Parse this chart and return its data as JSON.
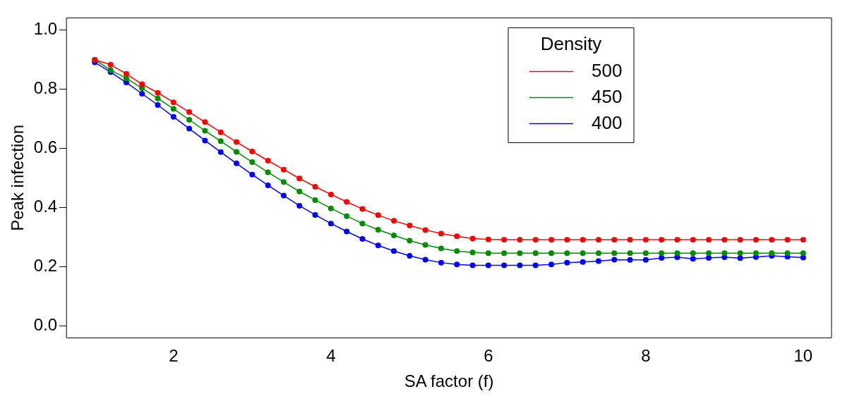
{
  "chart_data": {
    "type": "line",
    "xlabel": "SA factor (f)",
    "ylabel": "Peak infection",
    "legend_title": "Density",
    "legend": "top right",
    "marker": "circle",
    "line_style": "solid",
    "grid": false,
    "x": [
      1,
      1.2,
      1.4,
      1.6,
      1.8,
      2,
      2.2,
      2.4,
      2.6,
      2.8,
      3,
      3.2,
      3.4,
      3.6,
      3.8,
      4,
      4.2,
      4.4,
      4.6,
      4.8,
      5,
      5.2,
      5.4,
      5.6,
      5.8,
      6,
      6.2,
      6.4,
      6.6,
      6.8,
      7,
      7.2,
      7.4,
      7.6,
      7.8,
      8,
      8.2,
      8.4,
      8.6,
      8.8,
      9,
      9.2,
      9.4,
      9.6,
      9.8,
      10
    ],
    "xlim": [
      0.64,
      10.36
    ],
    "xticks": [
      2,
      4,
      6,
      8,
      10
    ],
    "ylim": [
      -0.04,
      1.04
    ],
    "yticks": [
      {
        "value": 0,
        "label": "0.0"
      },
      0.2,
      0.4,
      0.6,
      0.8,
      {
        "value": 1,
        "label": "1.0"
      }
    ],
    "series": [
      {
        "name": "500",
        "color": "#ff0000",
        "values": [
          0.898,
          0.882,
          0.851,
          0.816,
          0.787,
          0.755,
          0.722,
          0.688,
          0.654,
          0.621,
          0.589,
          0.558,
          0.528,
          0.498,
          0.47,
          0.444,
          0.419,
          0.395,
          0.374,
          0.355,
          0.339,
          0.324,
          0.312,
          0.303,
          0.295,
          0.292,
          0.291,
          0.291,
          0.291,
          0.291,
          0.291,
          0.291,
          0.291,
          0.291,
          0.291,
          0.291,
          0.291,
          0.291,
          0.291,
          0.291,
          0.291,
          0.291,
          0.291,
          0.291,
          0.291,
          0.291
        ]
      },
      {
        "name": "450",
        "color": "#008b00",
        "values": [
          0.899,
          0.864,
          0.836,
          0.803,
          0.768,
          0.733,
          0.696,
          0.659,
          0.624,
          0.588,
          0.553,
          0.519,
          0.486,
          0.454,
          0.425,
          0.397,
          0.371,
          0.346,
          0.325,
          0.306,
          0.288,
          0.274,
          0.262,
          0.253,
          0.248,
          0.246,
          0.246,
          0.246,
          0.246,
          0.246,
          0.246,
          0.246,
          0.246,
          0.246,
          0.246,
          0.246,
          0.246,
          0.246,
          0.246,
          0.246,
          0.246,
          0.246,
          0.246,
          0.246,
          0.246,
          0.246
        ]
      },
      {
        "name": "400",
        "color": "#0000ff",
        "values": [
          0.89,
          0.857,
          0.822,
          0.784,
          0.746,
          0.706,
          0.666,
          0.626,
          0.587,
          0.549,
          0.511,
          0.475,
          0.44,
          0.406,
          0.375,
          0.346,
          0.319,
          0.294,
          0.272,
          0.253,
          0.237,
          0.224,
          0.214,
          0.208,
          0.205,
          0.205,
          0.205,
          0.205,
          0.205,
          0.208,
          0.214,
          0.216,
          0.219,
          0.224,
          0.223,
          0.223,
          0.23,
          0.232,
          0.227,
          0.23,
          0.232,
          0.229,
          0.233,
          0.237,
          0.234,
          0.231
        ]
      }
    ]
  }
}
